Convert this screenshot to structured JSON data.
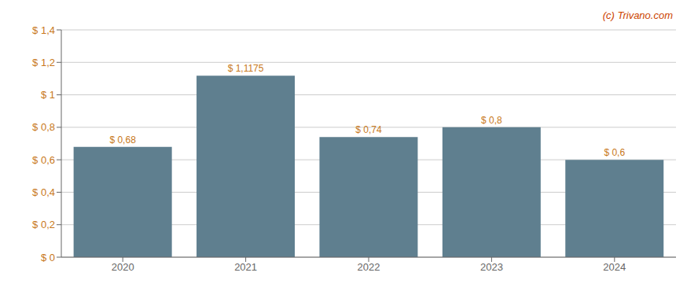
{
  "chart_data": {
    "type": "bar",
    "annotation": "(c) Trivano.com",
    "categories": [
      "2020",
      "2021",
      "2022",
      "2023",
      "2024"
    ],
    "values": [
      0.68,
      1.1175,
      0.74,
      0.8,
      0.6
    ],
    "value_labels": [
      "$ 0,68",
      "$ 1,1175",
      "$ 0,74",
      "$ 0,8",
      "$ 0,6"
    ],
    "color": "#5f7f8f",
    "ylim": [
      0,
      1.4
    ],
    "yticks": [
      {
        "value": 0,
        "label": "$ 0"
      },
      {
        "value": 0.2,
        "label": "$ 0,2"
      },
      {
        "value": 0.4,
        "label": "$ 0,4"
      },
      {
        "value": 0.6,
        "label": "$ 0,6"
      },
      {
        "value": 0.8,
        "label": "$ 0,8"
      },
      {
        "value": 1.0,
        "label": "$ 1"
      },
      {
        "value": 1.2,
        "label": "$ 1,2"
      },
      {
        "value": 1.4,
        "label": "$ 1,4"
      }
    ],
    "grid": true,
    "data_labels": true
  }
}
